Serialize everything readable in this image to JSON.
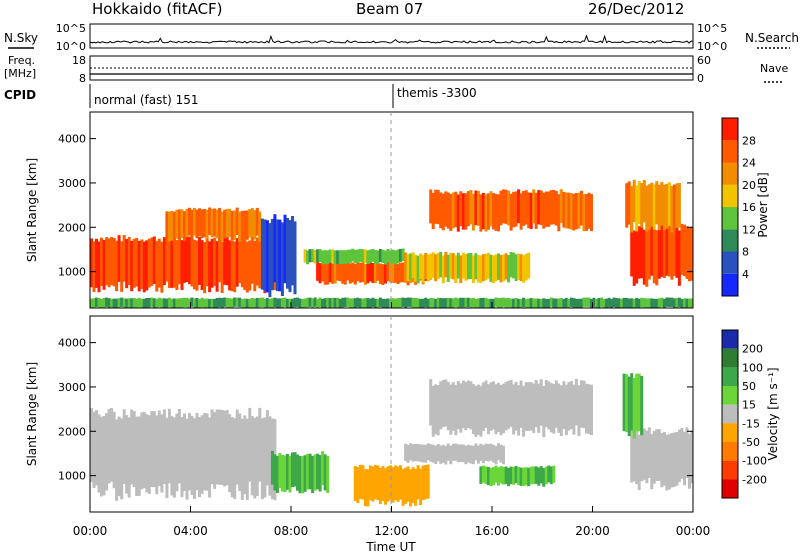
{
  "header": {
    "station": "Hokkaido (fitACF)",
    "beam": "Beam 07",
    "date": "26/Dec/2012"
  },
  "noise_panel": {
    "left_label": "N.Sky",
    "right_label": "N.Search",
    "left_ticks": [
      "10^5",
      "10^0"
    ],
    "right_ticks": [
      "10^5",
      "10^0"
    ]
  },
  "freq_panel": {
    "left_label": "Freq.",
    "left_unit": "[MHz]",
    "left_ticks": [
      "18",
      "8"
    ],
    "right_label": "Nave",
    "right_ticks": [
      "60",
      "0"
    ]
  },
  "cpid_panel": {
    "label": "CPID",
    "segments": [
      "normal (fast) 151",
      "themis -3300"
    ]
  },
  "axis": {
    "ylabel": "Slant Range [km]",
    "xlabel": "Time UT",
    "y_ticks": [
      "1000",
      "2000",
      "3000",
      "4000"
    ],
    "x_ticks": [
      "00:00",
      "04:00",
      "08:00",
      "12:00",
      "16:00",
      "20:00",
      "00:00"
    ]
  },
  "power_scale": {
    "label": "Power [dB]",
    "ticks": [
      "4",
      "8",
      "12",
      "16",
      "20",
      "24",
      "28"
    ],
    "colors": [
      "#1428ff",
      "#2a52be",
      "#2e8b57",
      "#5ec43c",
      "#f2c400",
      "#f28c00",
      "#ff5a00",
      "#ff1e00"
    ]
  },
  "velocity_scale": {
    "label": "Velocity [m s⁻¹]",
    "ticks": [
      "200",
      "100",
      "50",
      "15",
      "-15",
      "-50",
      "-100",
      "-200"
    ],
    "colors": [
      "#1a2aa8",
      "#2e7d32",
      "#3da84a",
      "#6ad63a",
      "#bdbdbd",
      "#ffa500",
      "#ff7a00",
      "#ff3c00",
      "#e00000"
    ]
  },
  "chart_data": [
    {
      "type": "heatmap",
      "title": "Power",
      "xlabel": "Time UT",
      "ylabel": "Slant Range [km]",
      "xlim": [
        0,
        24
      ],
      "ylim": [
        180,
        4600
      ],
      "colorbar_label": "Power [dB]",
      "regions": [
        {
          "t0": 0.0,
          "t1": 7.4,
          "r0": 650,
          "r1": 1750,
          "value": 28
        },
        {
          "t0": 3.0,
          "t1": 6.8,
          "r0": 1750,
          "r1": 2400,
          "value": 24
        },
        {
          "t0": 6.8,
          "t1": 8.2,
          "r0": 600,
          "r1": 2200,
          "value": 6
        },
        {
          "t0": 9.0,
          "t1": 13.5,
          "r0": 750,
          "r1": 1200,
          "value": 26
        },
        {
          "t0": 8.5,
          "t1": 12.5,
          "r0": 1200,
          "r1": 1500,
          "value": 14
        },
        {
          "t0": 13.5,
          "t1": 20.0,
          "r0": 2000,
          "r1": 2800,
          "value": 26
        },
        {
          "t0": 12.5,
          "t1": 17.5,
          "r0": 800,
          "r1": 1400,
          "value": 18
        },
        {
          "t0": 21.5,
          "t1": 24.0,
          "r0": 800,
          "r1": 2000,
          "value": 28
        },
        {
          "t0": 21.3,
          "t1": 23.5,
          "r0": 2000,
          "r1": 3000,
          "value": 22
        },
        {
          "t0": 0.0,
          "t1": 24.0,
          "r0": 180,
          "r1": 400,
          "value": 12
        }
      ]
    },
    {
      "type": "heatmap",
      "title": "Velocity",
      "xlabel": "Time UT",
      "ylabel": "Slant Range [km]",
      "xlim": [
        0,
        24
      ],
      "ylim": [
        180,
        4600
      ],
      "colorbar_label": "Velocity [m s-1]",
      "regions": [
        {
          "t0": 0.0,
          "t1": 7.4,
          "r0": 650,
          "r1": 2400,
          "value": 0
        },
        {
          "t0": 7.2,
          "t1": 9.5,
          "r0": 700,
          "r1": 1500,
          "value": 30
        },
        {
          "t0": 10.5,
          "t1": 13.5,
          "r0": 400,
          "r1": 1200,
          "value": -40
        },
        {
          "t0": 12.5,
          "t1": 16.5,
          "r0": 1300,
          "r1": 1700,
          "value": 0
        },
        {
          "t0": 13.5,
          "t1": 20.0,
          "r0": 2000,
          "r1": 3100,
          "value": 0
        },
        {
          "t0": 15.5,
          "t1": 18.5,
          "r0": 800,
          "r1": 1200,
          "value": 30
        },
        {
          "t0": 21.5,
          "t1": 24.0,
          "r0": 800,
          "r1": 2000,
          "value": 0
        },
        {
          "t0": 21.2,
          "t1": 22.0,
          "r0": 2000,
          "r1": 3300,
          "value": 30
        }
      ]
    }
  ]
}
